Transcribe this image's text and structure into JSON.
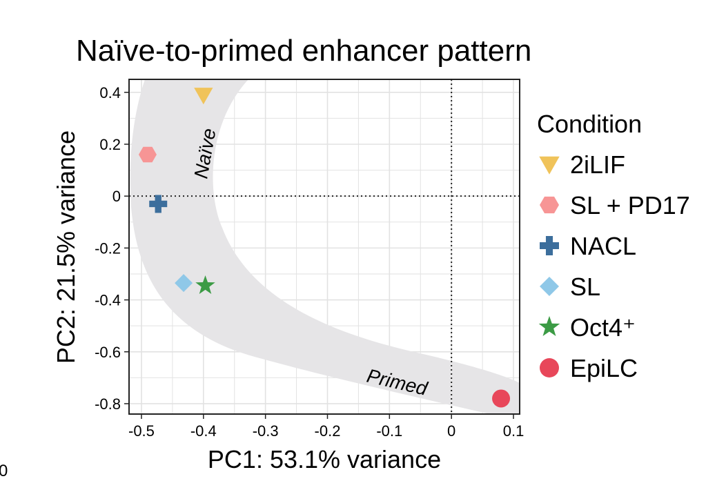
{
  "chart_data": {
    "type": "scatter",
    "title": "Naïve-to-primed enhancer pattern",
    "xlabel": "PC1: 53.1% variance",
    "ylabel": "PC2: 21.5% variance",
    "xlim": [
      -0.52,
      0.11
    ],
    "ylim": [
      -0.84,
      0.45
    ],
    "x_ticks": [
      -0.5,
      -0.4,
      -0.3,
      -0.2,
      -0.1,
      0,
      0.1
    ],
    "x_tick_labels": [
      "-0.5",
      "-0.4",
      "-0.3",
      "-0.2",
      "-0.1",
      "0",
      "0.1"
    ],
    "y_ticks": [
      0.4,
      0.2,
      0,
      -0.2,
      -0.4,
      -0.6,
      -0.8
    ],
    "y_tick_labels": [
      "0.4",
      "0.2",
      "0",
      "-0.2",
      "-0.4",
      "-0.6",
      "-0.8"
    ],
    "grid": true,
    "reference_lines": {
      "x": 0,
      "y": 0,
      "style": "dotted"
    },
    "legend": {
      "title": "Condition",
      "placement": "right"
    },
    "series": [
      {
        "name": "2iLIF",
        "shape": "triangle-down",
        "color": "#F0C35A",
        "x": -0.4,
        "y": 0.39
      },
      {
        "name": "SL + PD17",
        "shape": "hexagon",
        "color": "#F79595",
        "x": -0.49,
        "y": 0.16
      },
      {
        "name": "NACL",
        "shape": "plus",
        "color": "#3C6E9C",
        "x": -0.473,
        "y": -0.03
      },
      {
        "name": "SL",
        "shape": "diamond",
        "color": "#8FC8E8",
        "x": -0.432,
        "y": -0.335
      },
      {
        "name": "Oct4⁺",
        "shape": "star",
        "color": "#3C9B45",
        "x": -0.397,
        "y": -0.345
      },
      {
        "name": "EpiLC",
        "shape": "circle",
        "color": "#E8475A",
        "x": 0.08,
        "y": -0.78
      }
    ],
    "annotations": [
      "Naïve",
      "Primed"
    ],
    "band_color": "#E6E5E7"
  },
  "corner_label": "0"
}
